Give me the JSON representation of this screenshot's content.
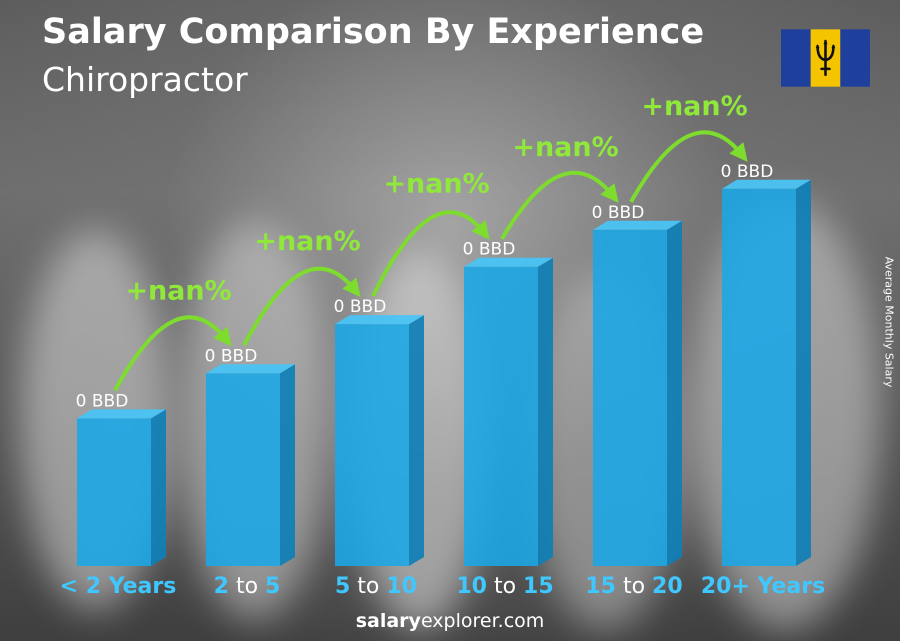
{
  "header": {
    "title": "Salary Comparison By Experience",
    "subtitle": "Chiropractor"
  },
  "side_label": "Average Monthly Salary",
  "footer": {
    "brand_bold": "salary",
    "brand_rest": "explorer.com"
  },
  "flag": {
    "name": "barbados-flag",
    "colors": [
      "#1f3f9c",
      "#f5c400",
      "#1f3f9c"
    ]
  },
  "colors": {
    "bar": "#1aa7e8",
    "bar_side": "#0f7fb6",
    "bar_top": "#49c4f4",
    "change": "#8fe83a",
    "category_accent": "#3fc8ff"
  },
  "chart_data": {
    "type": "bar",
    "categories": [
      "< 2 Years",
      "2 to 5",
      "5 to 10",
      "10 to 15",
      "15 to 20",
      "20+ Years"
    ],
    "category_parts": [
      [
        [
          "< 2 Years",
          "num"
        ]
      ],
      [
        [
          "2",
          "num"
        ],
        [
          " to ",
          "word"
        ],
        [
          "5",
          "num"
        ]
      ],
      [
        [
          "5",
          "num"
        ],
        [
          " to ",
          "word"
        ],
        [
          "10",
          "num"
        ]
      ],
      [
        [
          "10",
          "num"
        ],
        [
          " to ",
          "word"
        ],
        [
          "15",
          "num"
        ]
      ],
      [
        [
          "15",
          "num"
        ],
        [
          " to ",
          "word"
        ],
        [
          "20",
          "num"
        ]
      ],
      [
        [
          "20+ Years",
          "num"
        ]
      ]
    ],
    "values": [
      0,
      0,
      0,
      0,
      0,
      0
    ],
    "value_labels": [
      "0 BBD",
      "0 BBD",
      "0 BBD",
      "0 BBD",
      "0 BBD",
      "0 BBD"
    ],
    "relative_heights": [
      0.36,
      0.47,
      0.59,
      0.73,
      0.82,
      0.92
    ],
    "changes": [
      "+nan%",
      "+nan%",
      "+nan%",
      "+nan%",
      "+nan%"
    ],
    "ylabel": "Average Monthly Salary",
    "grid": false,
    "legend": "none"
  }
}
